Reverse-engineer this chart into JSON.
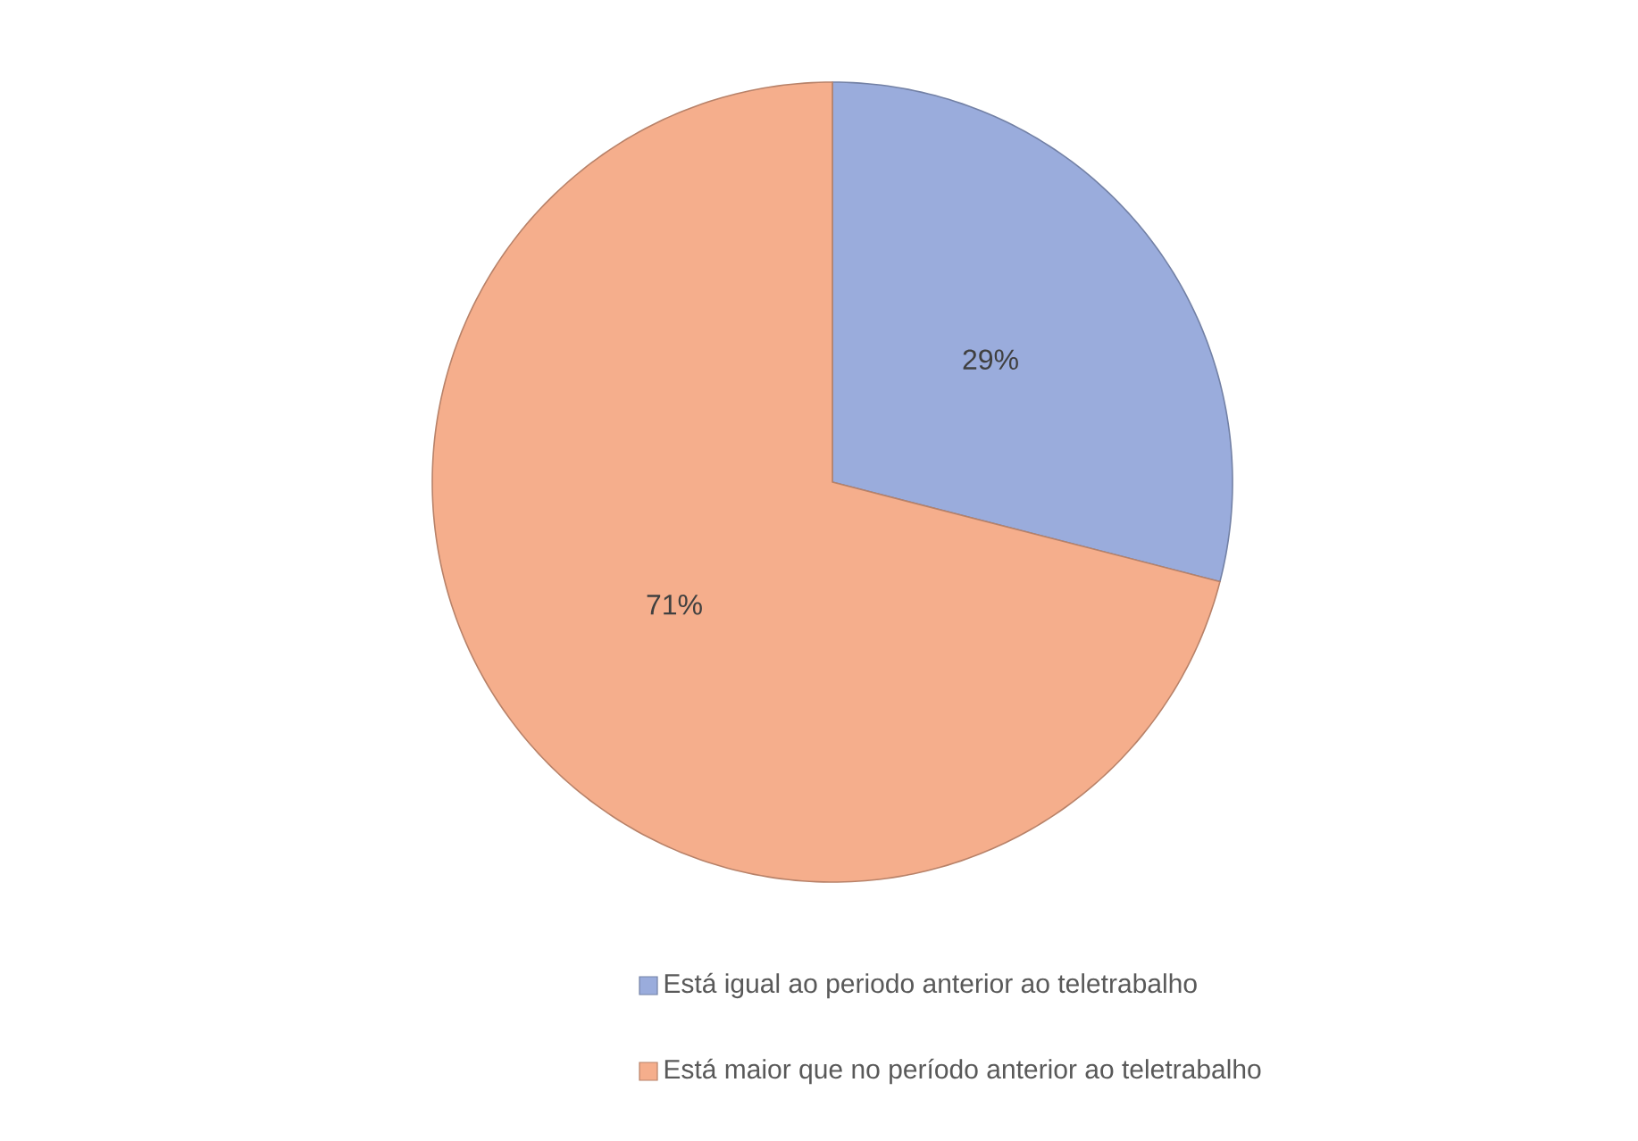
{
  "chart_data": {
    "type": "pie",
    "categories": [
      "Está igual ao periodo anterior ao teletrabalho",
      "Está maior que no período anterior ao teletrabalho"
    ],
    "values": [
      29,
      71
    ],
    "value_labels": [
      "29%",
      "71%"
    ],
    "colors": [
      "#9aacdc",
      "#f5ae8c"
    ],
    "legend": "bottom"
  }
}
